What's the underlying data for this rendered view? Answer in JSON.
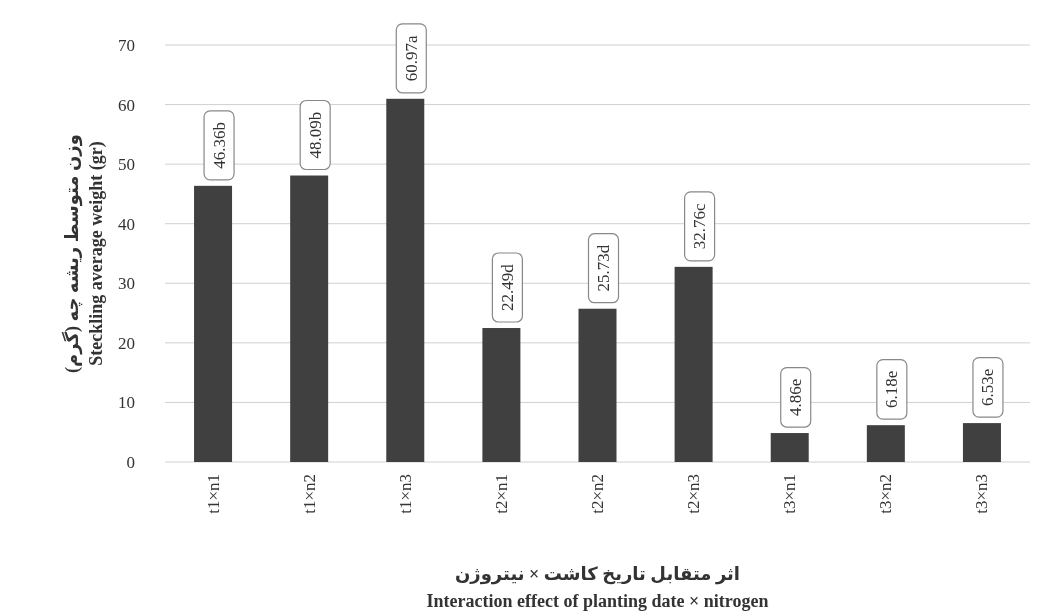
{
  "chart_data": {
    "type": "bar",
    "categories": [
      "t1×n1",
      "t1×n2",
      "t1×n3",
      "t2×n1",
      "t2×n2",
      "t2×n3",
      "t3×n1",
      "t3×n2",
      "t3×n3"
    ],
    "values": [
      46.36,
      48.09,
      60.97,
      22.49,
      25.73,
      32.76,
      4.86,
      6.18,
      6.53
    ],
    "value_labels": [
      "46.36b",
      "48.09b",
      "60.97a",
      "22.49d",
      "25.73d",
      "32.76c",
      "4.86e",
      "6.18e",
      "6.53e"
    ],
    "color": "#404040",
    "ylim": [
      0,
      70
    ],
    "yticks": [
      0,
      10,
      20,
      30,
      40,
      50,
      60,
      70
    ],
    "grid": "y",
    "xlabel": "اثر متقابل تاریخ کاشت × نیتروژن\nInteraction effect of planting date × nitrogen",
    "ylabel": "وزن متوسط ریشه چه (گرم)\nSteckling average weight (gr)"
  }
}
